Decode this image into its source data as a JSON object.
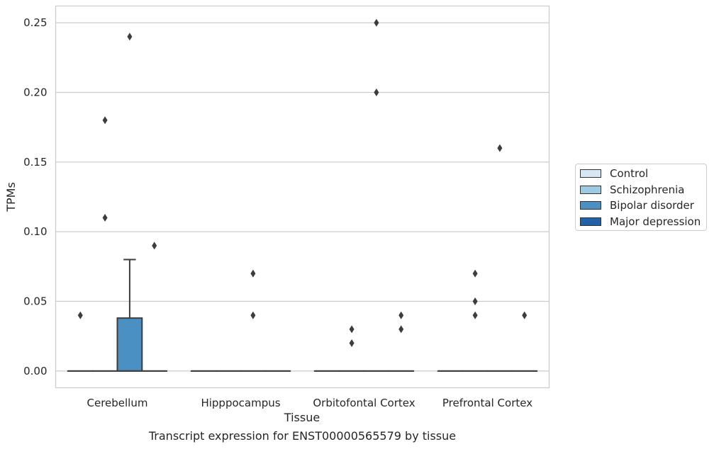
{
  "chart_data": {
    "type": "box",
    "caption": "Transcript expression for ENST00000565579 by tissue",
    "xlabel": "Tissue",
    "ylabel": "TPMs",
    "ylim": [
      -0.012,
      0.262
    ],
    "yticks": [
      0.0,
      0.05,
      0.1,
      0.15,
      0.2,
      0.25
    ],
    "ytick_labels": [
      "0.00",
      "0.05",
      "0.10",
      "0.15",
      "0.20",
      "0.25"
    ],
    "grid": "horizontal",
    "legend_position": "right",
    "categories": [
      "Cerebellum",
      "Hipppocampus",
      "Orbitofontal Cortex",
      "Prefrontal Cortex"
    ],
    "series": [
      {
        "name": "Control",
        "color": "#d6e6f4",
        "boxes": [
          {
            "q1": 0,
            "median": 0,
            "q3": 0,
            "whisker_low": 0,
            "whisker_high": 0,
            "outliers": [
              0.04
            ]
          },
          {
            "q1": 0,
            "median": 0,
            "q3": 0,
            "whisker_low": 0,
            "whisker_high": 0,
            "outliers": []
          },
          {
            "q1": 0,
            "median": 0,
            "q3": 0,
            "whisker_low": 0,
            "whisker_high": 0,
            "outliers": []
          },
          {
            "q1": 0,
            "median": 0,
            "q3": 0,
            "whisker_low": 0,
            "whisker_high": 0,
            "outliers": []
          }
        ]
      },
      {
        "name": "Schizophrenia",
        "color": "#9ecae1",
        "boxes": [
          {
            "q1": 0,
            "median": 0,
            "q3": 0,
            "whisker_low": 0,
            "whisker_high": 0,
            "outliers": [
              0.18,
              0.11
            ]
          },
          {
            "q1": 0,
            "median": 0,
            "q3": 0,
            "whisker_low": 0,
            "whisker_high": 0,
            "outliers": []
          },
          {
            "q1": 0,
            "median": 0,
            "q3": 0,
            "whisker_low": 0,
            "whisker_high": 0,
            "outliers": [
              0.03,
              0.02
            ]
          },
          {
            "q1": 0,
            "median": 0,
            "q3": 0,
            "whisker_low": 0,
            "whisker_high": 0,
            "outliers": [
              0.07,
              0.05,
              0.04
            ]
          }
        ]
      },
      {
        "name": "Bipolar disorder",
        "color": "#4a90c2",
        "boxes": [
          {
            "q1": 0,
            "median": 0,
            "q3": 0.038,
            "whisker_low": 0,
            "whisker_high": 0.08,
            "outliers": [
              0.24
            ]
          },
          {
            "q1": 0,
            "median": 0,
            "q3": 0,
            "whisker_low": 0,
            "whisker_high": 0,
            "outliers": [
              0.07,
              0.04
            ]
          },
          {
            "q1": 0,
            "median": 0,
            "q3": 0,
            "whisker_low": 0,
            "whisker_high": 0,
            "outliers": [
              0.25,
              0.2
            ]
          },
          {
            "q1": 0,
            "median": 0,
            "q3": 0,
            "whisker_low": 0,
            "whisker_high": 0,
            "outliers": [
              0.16
            ]
          }
        ]
      },
      {
        "name": "Major depression",
        "color": "#2462a8",
        "boxes": [
          {
            "q1": 0,
            "median": 0,
            "q3": 0,
            "whisker_low": 0,
            "whisker_high": 0,
            "outliers": [
              0.09
            ]
          },
          {
            "q1": 0,
            "median": 0,
            "q3": 0,
            "whisker_low": 0,
            "whisker_high": 0,
            "outliers": []
          },
          {
            "q1": 0,
            "median": 0,
            "q3": 0,
            "whisker_low": 0,
            "whisker_high": 0,
            "outliers": [
              0.04,
              0.03
            ]
          },
          {
            "q1": 0,
            "median": 0,
            "q3": 0,
            "whisker_low": 0,
            "whisker_high": 0,
            "outliers": [
              0.04
            ]
          }
        ]
      }
    ]
  }
}
